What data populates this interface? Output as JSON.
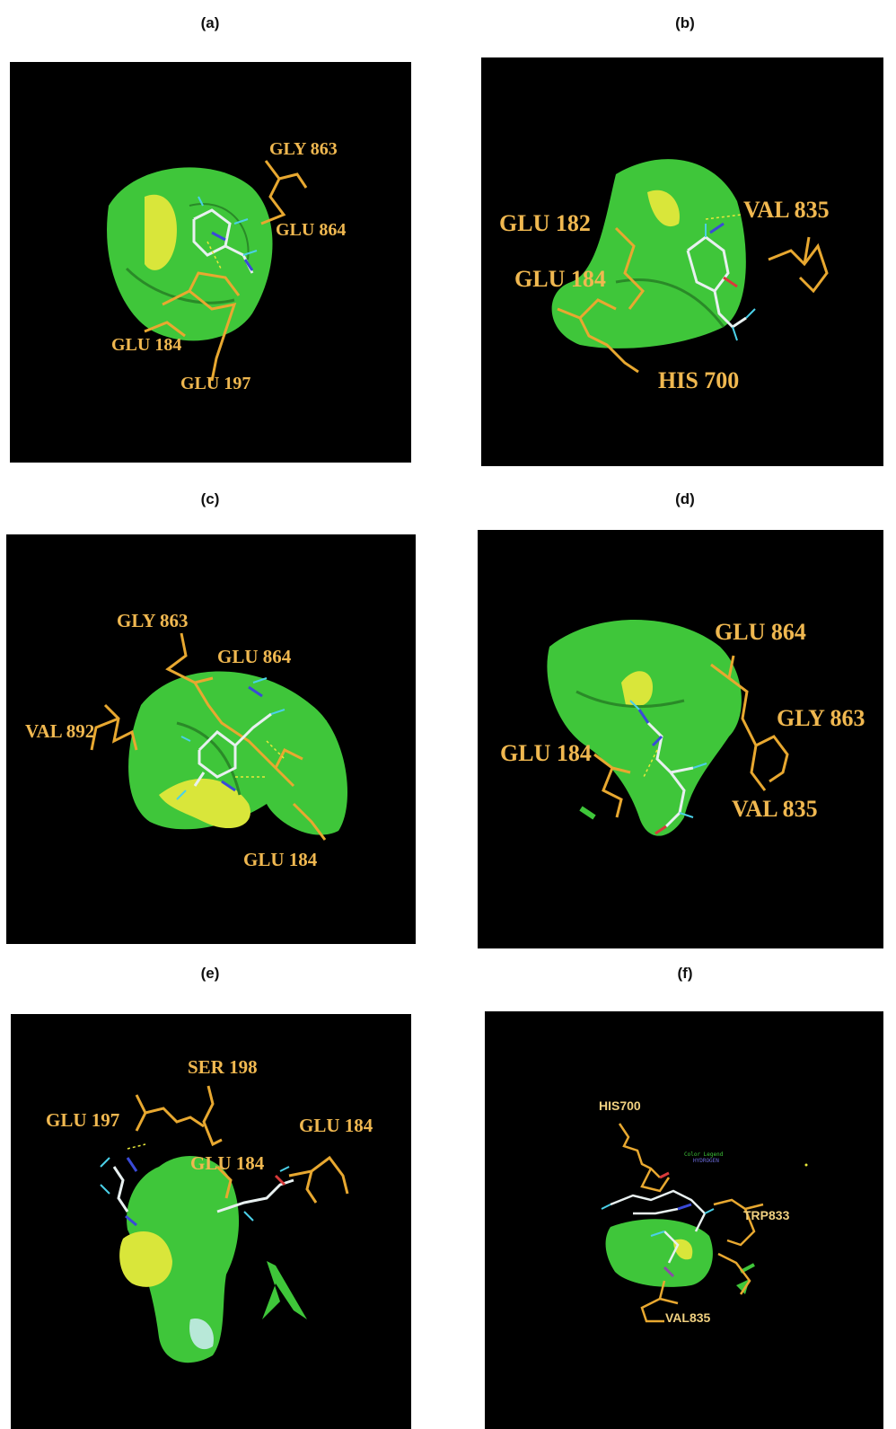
{
  "panels": {
    "a": {
      "label": "(a)",
      "residues": [
        "GLY 863",
        "GLU 864",
        "GLU 184",
        "GLU 197"
      ]
    },
    "b": {
      "label": "(b)",
      "residues": [
        "GLU 182",
        "VAL 835",
        "GLU 184",
        "HIS 700"
      ]
    },
    "c": {
      "label": "(c)",
      "residues": [
        "GLY 863",
        "GLU 864",
        "VAL 892",
        "GLU 184"
      ]
    },
    "d": {
      "label": "(d)",
      "residues": [
        "GLU 864",
        "GLY 863",
        "GLU 184",
        "VAL 835"
      ]
    },
    "e": {
      "label": "(e)",
      "residues": [
        "SER 198",
        "GLU 197",
        "GLU 184",
        "GLU 184"
      ]
    },
    "f": {
      "label": "(f)",
      "residues": [
        "HIS700",
        "TRP833",
        "VAL835"
      ],
      "legend": [
        "Color Legend",
        "HYDROGEN"
      ]
    }
  },
  "colors": {
    "background": "#000000",
    "surface": "#3fc63a",
    "surface_highlight": "#d9e63a",
    "residue_stick": "#e8a830",
    "ligand": "#e8f0f0",
    "label": "#f0b850"
  }
}
